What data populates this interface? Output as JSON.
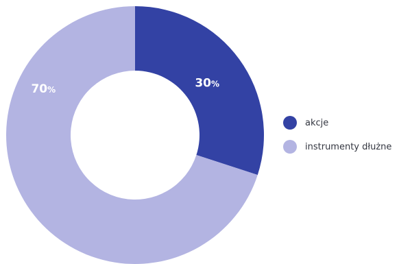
{
  "chart_data": {
    "type": "pie",
    "donut": true,
    "categories": [
      "akcje",
      "instrumenty dłużne"
    ],
    "values": [
      30,
      70
    ],
    "unit": "%",
    "colors": [
      "#3342a4",
      "#b3b4e2"
    ],
    "title": "",
    "legend_position": "right"
  },
  "legend": {
    "items": [
      {
        "label": "akcje",
        "color": "#3342a4"
      },
      {
        "label": "instrumenty dłużne",
        "color": "#b3b4e2"
      }
    ]
  },
  "slice_labels": [
    "30%",
    "70%"
  ]
}
